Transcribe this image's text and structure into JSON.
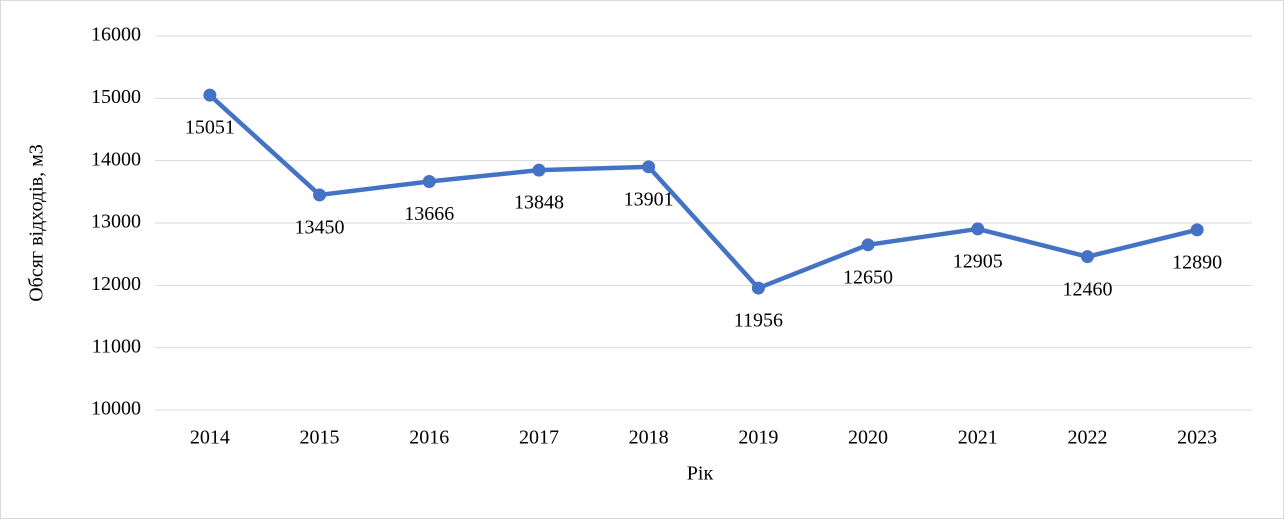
{
  "chart_data": {
    "type": "line",
    "x_label": "Рік",
    "y_label": "Обсяг відходів, м3",
    "categories": [
      "2014",
      "2015",
      "2016",
      "2017",
      "2018",
      "2019",
      "2020",
      "2021",
      "2022",
      "2023"
    ],
    "values": [
      15051,
      13450,
      13666,
      13848,
      13901,
      11956,
      12650,
      12905,
      12460,
      12890
    ],
    "color": "#4472c4",
    "ylim": [
      10000,
      16000
    ],
    "yticks": [
      10000,
      11000,
      12000,
      13000,
      14000,
      15000,
      16000
    ],
    "grid": true
  }
}
